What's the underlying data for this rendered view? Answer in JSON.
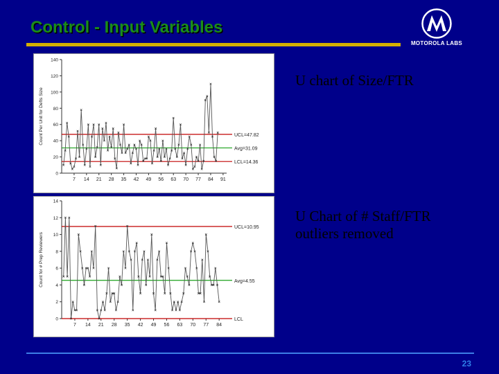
{
  "slide": {
    "title": "Control - Input Variables",
    "caption1": "U chart of Size/FTR",
    "caption2_line1": "U Chart of # Staff/FTR",
    "caption2_line2": "outliers removed",
    "page_number": "23",
    "logo_text": "MOTOROLA LABS"
  },
  "colors": {
    "background": "#00008a",
    "title": "#1a8c1a",
    "title_rule": "#d4b000",
    "limit_line": "#c00000",
    "center_line": "#1aa01a",
    "data_line": "#555555"
  },
  "chart_data": [
    {
      "type": "line",
      "ylabel": "Count Per Unit for Defts Size",
      "x_ticks": [
        7,
        14,
        21,
        28,
        35,
        42,
        49,
        56,
        63,
        70,
        77,
        84,
        91
      ],
      "y_ticks": [
        0,
        20,
        40,
        60,
        80,
        100,
        120,
        140
      ],
      "xlim": [
        0,
        93
      ],
      "ylim": [
        0,
        140
      ],
      "limits": {
        "ucl": 47.82,
        "center": 31.09,
        "lcl": 14.36
      },
      "limit_labels": {
        "ucl": "UCL=47.82",
        "center": "Avg=31.09",
        "lcl": "LCL=14.36"
      },
      "series": [
        {
          "x": [
            1,
            2,
            3,
            4,
            5,
            6,
            7,
            8,
            9,
            10,
            11,
            12,
            13,
            14,
            15,
            16,
            17,
            18,
            19,
            20,
            21,
            22,
            23,
            24,
            25,
            26,
            27,
            28,
            29,
            30,
            31,
            32,
            33,
            34,
            35,
            36,
            37,
            38,
            39,
            40,
            41,
            42,
            43,
            44,
            45,
            46,
            47,
            48,
            49,
            50,
            51,
            52,
            53,
            54,
            55,
            56,
            57,
            58,
            59,
            60,
            61,
            62,
            63,
            64,
            65,
            66,
            67,
            68,
            69,
            70,
            71,
            72,
            73,
            74,
            75,
            76,
            77,
            78,
            79,
            80,
            81,
            82,
            83,
            84,
            85,
            86,
            87,
            88
          ],
          "values": [
            10,
            28,
            62,
            45,
            12,
            5,
            8,
            18,
            52,
            20,
            78,
            35,
            10,
            30,
            60,
            8,
            45,
            60,
            20,
            32,
            60,
            10,
            55,
            40,
            62,
            28,
            45,
            32,
            55,
            18,
            6,
            50,
            35,
            25,
            60,
            25,
            30,
            35,
            12,
            25,
            35,
            30,
            10,
            40,
            35,
            15,
            18,
            18,
            45,
            40,
            12,
            28,
            55,
            20,
            30,
            15,
            40,
            20,
            30,
            10,
            18,
            28,
            68,
            30,
            20,
            35,
            60,
            18,
            25,
            10,
            30,
            45,
            35,
            5,
            8,
            20,
            15,
            35,
            5,
            15,
            90,
            95,
            50,
            110,
            45,
            20,
            15,
            50
          ]
        }
      ]
    },
    {
      "type": "line",
      "ylabel": "Count for # Prep Reviewers",
      "x_ticks": [
        7,
        14,
        21,
        28,
        35,
        42,
        49,
        56,
        63,
        70,
        77,
        84
      ],
      "y_ticks": [
        0,
        2,
        4,
        6,
        8,
        10,
        12,
        14
      ],
      "xlim": [
        0,
        88
      ],
      "ylim": [
        0,
        14
      ],
      "limits": {
        "ucl": 10.95,
        "center": 4.55,
        "lcl": 0
      },
      "limit_labels": {
        "ucl": "UCL=10.95",
        "center": "Avg=4.55",
        "lcl": "LCL"
      },
      "series": [
        {
          "x": [
            1,
            2,
            3,
            4,
            5,
            6,
            7,
            8,
            9,
            10,
            11,
            12,
            13,
            14,
            15,
            16,
            17,
            18,
            19,
            20,
            21,
            22,
            23,
            24,
            25,
            26,
            27,
            28,
            29,
            30,
            31,
            32,
            33,
            34,
            35,
            36,
            37,
            38,
            39,
            40,
            41,
            42,
            43,
            44,
            45,
            46,
            47,
            48,
            49,
            50,
            51,
            52,
            53,
            54,
            55,
            56,
            57,
            58,
            59,
            60,
            61,
            62,
            63,
            64,
            65,
            66,
            67,
            68,
            69,
            70,
            71,
            72,
            73,
            74,
            75,
            76,
            77,
            78,
            79,
            80,
            81,
            82,
            83,
            84
          ],
          "values": [
            5,
            12,
            5,
            12,
            0,
            2,
            1,
            1,
            10,
            8,
            6,
            4,
            6,
            6,
            5,
            8,
            6,
            11,
            1,
            0,
            1,
            2,
            1,
            3,
            6,
            2,
            3,
            3,
            1,
            2,
            5,
            4,
            8,
            6,
            11,
            8,
            7,
            1,
            8,
            9,
            5,
            3,
            7,
            8,
            4,
            7,
            5,
            10,
            3,
            1,
            7,
            8,
            5,
            5,
            3,
            9,
            6,
            3,
            1,
            2,
            1,
            2,
            1,
            2,
            3,
            6,
            5,
            4,
            8,
            9,
            8,
            6,
            3,
            3,
            7,
            2,
            10,
            8,
            5,
            4,
            4,
            6,
            4,
            2
          ]
        }
      ]
    }
  ]
}
